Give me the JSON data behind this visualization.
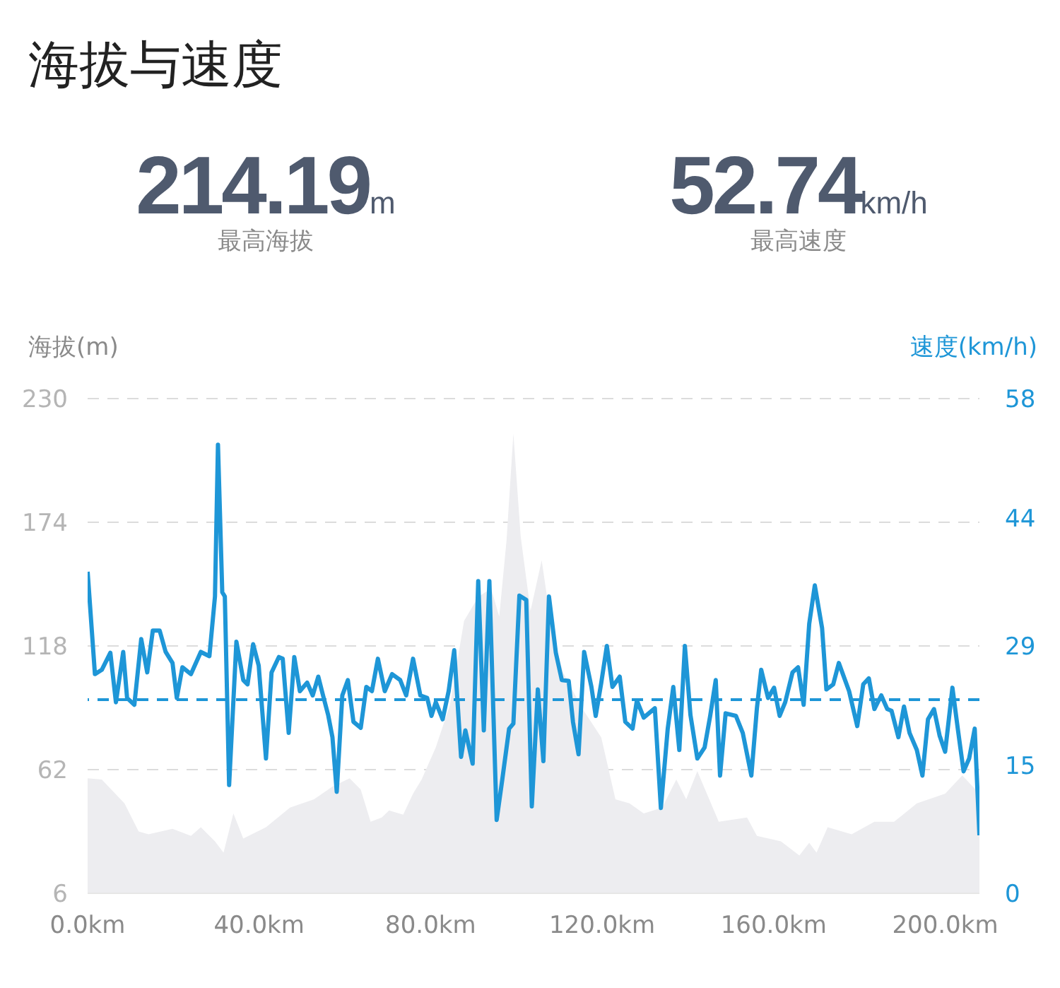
{
  "chart_data": {
    "type": "line",
    "title": "海拔与速度",
    "annotations": [
      "214.19m",
      "最高海拔",
      "52.74km/h",
      "最高速度"
    ],
    "ylabel": "海拔(m)",
    "y2label": "速度(km/h)",
    "xlim": [
      0,
      208
    ],
    "xticks": [
      {
        "value": 0,
        "label": "0.0km"
      },
      {
        "value": 40,
        "label": "40.0km"
      },
      {
        "value": 80,
        "label": "80.0km"
      },
      {
        "value": 120,
        "label": "120.0km"
      },
      {
        "value": 160,
        "label": "160.0km"
      },
      {
        "value": 200,
        "label": "200.0km"
      }
    ],
    "ylim": [
      6,
      230
    ],
    "yticks": [
      6,
      62,
      118,
      174,
      230
    ],
    "y2lim": [
      0,
      58
    ],
    "y2ticks": [
      0,
      15,
      29,
      44,
      58
    ],
    "grid": "y",
    "legend": false,
    "ref_lines": [
      {
        "axis": "y2",
        "value": 22.7,
        "color": "#1e96d7",
        "line_style": "dashed"
      }
    ],
    "series": [
      {
        "type": "area",
        "color": "#ededf0",
        "x": [
          0,
          3.3,
          8.6,
          11.9,
          14.2,
          19.8,
          24.1,
          26.4,
          29.7,
          31.7,
          34.0,
          36.3,
          41.6,
          47.2,
          52.8,
          57.1,
          61.1,
          63.7,
          66.0,
          68.6,
          70.3,
          73.6,
          75.9,
          77.9,
          81.2,
          84.5,
          87.8,
          91.1,
          94.1,
          96.0,
          97.7,
          99.3,
          101.0,
          103.3,
          105.9,
          108.3,
          110.9,
          115.5,
          119.8,
          123.1,
          126.4,
          129.7,
          134.0,
          137.3,
          139.6,
          142.2,
          147.2,
          153.8,
          156.1,
          161.7,
          166.0,
          168.3,
          170.0,
          172.6,
          178.2,
          183.5,
          188.1,
          193.4,
          200.0,
          204.0,
          208
        ],
        "values": [
          58.1,
          57.5,
          46.7,
          34.0,
          32.7,
          35.2,
          32.0,
          35.9,
          29.5,
          24.4,
          42.2,
          30.8,
          35.9,
          44.8,
          48.6,
          54.3,
          58.1,
          53.0,
          38.4,
          40.3,
          43.5,
          41.6,
          51.1,
          57.5,
          72.1,
          91.2,
          129.4,
          140.2,
          144.1,
          131.3,
          165.7,
          214.2,
          167.6,
          133.9,
          156.8,
          124.9,
          105.9,
          89.3,
          76.6,
          48.6,
          46.7,
          42.2,
          44.8,
          57.5,
          48.6,
          61.3,
          38.4,
          40.3,
          32.0,
          29.5,
          23.1,
          28.9,
          24.4,
          35.9,
          32.7,
          38.4,
          38.4,
          46.7,
          51.1,
          59.4,
          51.1
        ]
      },
      {
        "axis": "y2",
        "color": "#1e96d7",
        "line_style": "solid",
        "x": [
          0,
          1.7,
          3.3,
          5.3,
          6.6,
          8.3,
          9.2,
          10.9,
          12.5,
          13.9,
          15.2,
          16.8,
          18.2,
          19.8,
          20.8,
          22.1,
          24.1,
          26.4,
          28.4,
          29.7,
          30.4,
          31.4,
          32.0,
          33.0,
          34.7,
          36.3,
          37.3,
          38.6,
          39.9,
          41.6,
          42.9,
          44.6,
          45.5,
          46.9,
          48.2,
          49.5,
          51.2,
          52.5,
          53.8,
          54.8,
          56.1,
          57.1,
          58.1,
          59.4,
          60.7,
          62.0,
          63.7,
          65.0,
          66.3,
          67.7,
          69.3,
          71.0,
          72.9,
          74.3,
          75.9,
          77.6,
          79.2,
          80.2,
          81.2,
          82.8,
          84.2,
          85.5,
          87.1,
          88.1,
          89.8,
          91.1,
          92.4,
          93.7,
          95.4,
          96.7,
          98.3,
          99.3,
          100.7,
          102.3,
          103.6,
          105.0,
          106.3,
          107.6,
          109.2,
          110.6,
          112.2,
          113.2,
          114.5,
          115.8,
          117.5,
          118.5,
          119.8,
          121.1,
          122.4,
          124.1,
          125.4,
          127.1,
          128.1,
          129.7,
          132.3,
          133.7,
          135.3,
          136.6,
          138.0,
          139.3,
          140.6,
          142.2,
          143.9,
          145.2,
          146.5,
          147.5,
          148.8,
          151.2,
          152.8,
          154.8,
          156.1,
          157.1,
          158.7,
          160.1,
          161.4,
          162.7,
          164.4,
          165.7,
          167.0,
          168.3,
          169.6,
          171.3,
          172.3,
          173.9,
          175.2,
          177.6,
          179.5,
          180.9,
          182.2,
          183.5,
          185.1,
          186.5,
          187.5,
          189.1,
          190.4,
          191.7,
          193.4,
          194.7,
          196.0,
          197.4,
          198.7,
          200.0,
          201.7,
          203.0,
          204.3,
          205.6,
          206.9,
          208
        ],
        "values": [
          37.7,
          25.7,
          26.2,
          28.2,
          22.4,
          28.3,
          22.9,
          22.1,
          29.8,
          25.9,
          30.8,
          30.8,
          28.3,
          27.0,
          22.9,
          26.5,
          25.7,
          28.3,
          27.8,
          34.8,
          52.6,
          35.3,
          34.8,
          12.7,
          29.5,
          25.0,
          24.5,
          29.2,
          26.7,
          15.8,
          25.9,
          27.7,
          27.5,
          18.8,
          27.7,
          23.7,
          24.7,
          23.2,
          25.4,
          23.4,
          20.9,
          18.3,
          11.9,
          23.2,
          25.0,
          20.1,
          19.4,
          24.2,
          23.7,
          27.5,
          23.7,
          25.7,
          25.0,
          23.2,
          27.5,
          23.2,
          22.9,
          20.8,
          22.4,
          20.4,
          23.7,
          28.5,
          16.0,
          19.1,
          15.2,
          36.6,
          19.1,
          36.6,
          8.6,
          13.3,
          19.3,
          19.9,
          34.9,
          34.4,
          10.2,
          23.9,
          15.5,
          34.8,
          28.2,
          25.0,
          24.9,
          20.1,
          16.3,
          28.3,
          24.2,
          20.8,
          24.7,
          29.0,
          24.2,
          25.4,
          20.1,
          19.3,
          22.6,
          20.6,
          21.7,
          10.0,
          19.3,
          24.2,
          16.8,
          29.0,
          20.9,
          15.8,
          17.1,
          20.8,
          25.0,
          13.8,
          21.1,
          20.8,
          18.8,
          13.8,
          21.7,
          26.2,
          22.9,
          24.1,
          20.8,
          22.4,
          25.9,
          26.5,
          22.1,
          31.6,
          36.1,
          31.1,
          23.9,
          24.5,
          27.0,
          23.7,
          19.6,
          24.5,
          25.2,
          21.6,
          23.2,
          21.6,
          21.4,
          18.3,
          21.9,
          18.8,
          16.8,
          13.8,
          20.4,
          21.6,
          18.5,
          16.6,
          24.1,
          19.1,
          14.3,
          15.8,
          19.3,
          6.8
        ]
      }
    ]
  }
}
